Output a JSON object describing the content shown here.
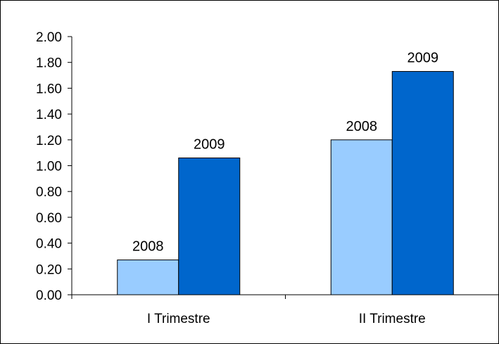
{
  "chart_data": {
    "type": "bar",
    "categories": [
      "I Trimestre",
      "II Trimestre"
    ],
    "series": [
      {
        "values": [
          0.27,
          1.2
        ],
        "data_labels": [
          "2008",
          "2008"
        ],
        "color": "#99ccff"
      },
      {
        "values": [
          1.06,
          1.73
        ],
        "data_labels": [
          "2009",
          "2009"
        ],
        "color": "#0066cc"
      }
    ],
    "ylim": [
      0,
      2.0
    ],
    "y_ticks": [
      "0.00",
      "0.20",
      "0.40",
      "0.60",
      "0.80",
      "1.00",
      "1.20",
      "1.40",
      "1.60",
      "1.80",
      "2.00"
    ],
    "legend": "none",
    "grid": false
  }
}
